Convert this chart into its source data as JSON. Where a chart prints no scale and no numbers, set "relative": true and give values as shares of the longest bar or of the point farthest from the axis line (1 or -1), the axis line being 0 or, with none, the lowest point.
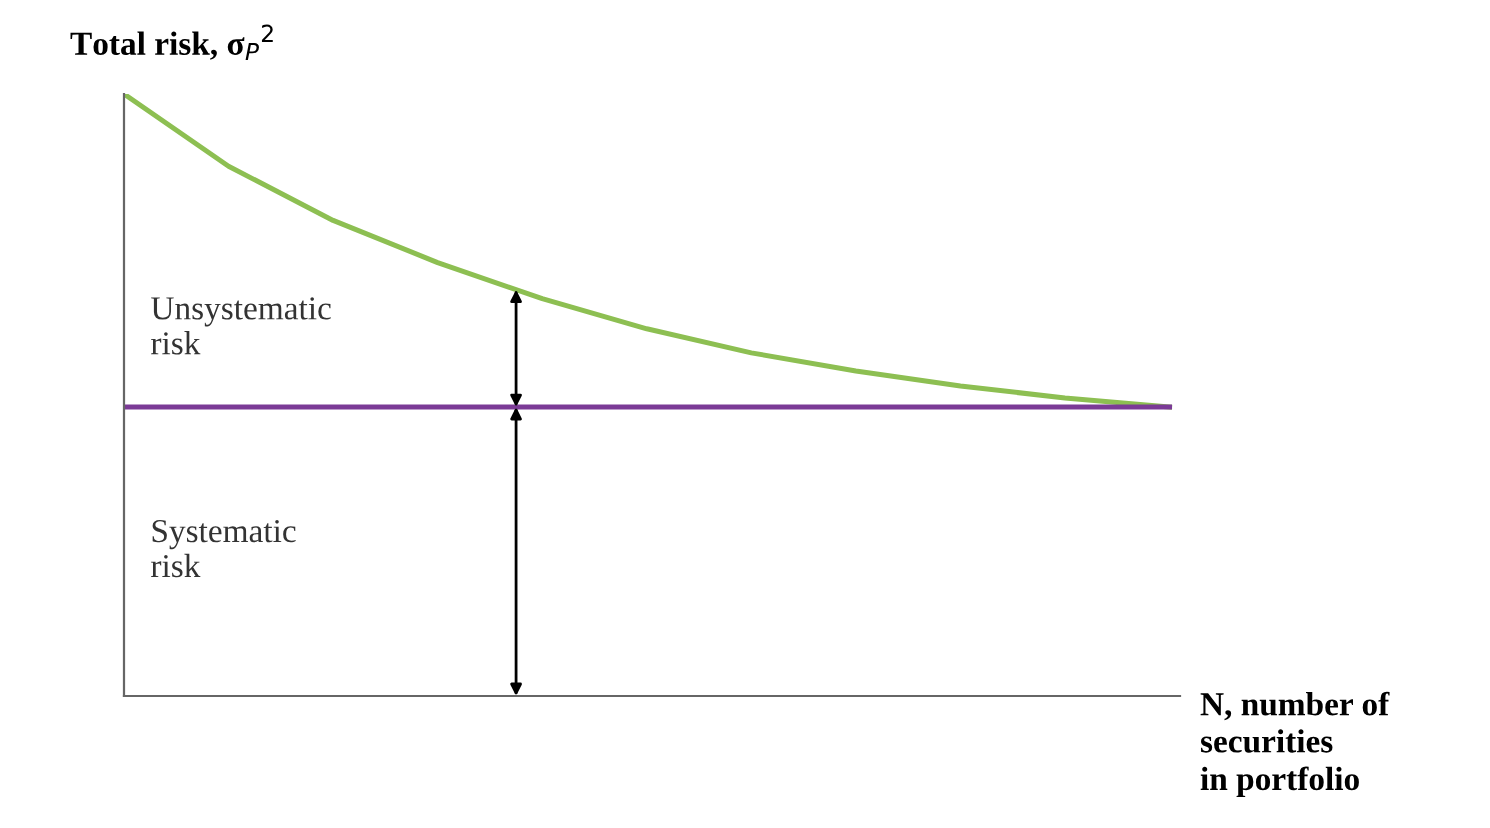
{
  "chart_data": {
    "type": "line",
    "relative": true,
    "ylabel": "Total risk, σ$_{P}$$^{2}$",
    "xlabel": "N, number of\nsecurities\nin portfolio",
    "categories": [
      null,
      null,
      null,
      null,
      null,
      null,
      null,
      null,
      null,
      null,
      null
    ],
    "series": [
      {
        "color": "#8dbf52",
        "values": [
          1.0,
          0.88,
          0.79,
          0.72,
          0.66,
          0.61,
          0.57,
          0.54,
          0.515,
          0.495,
          0.48
        ]
      },
      {
        "color": "#7b3a96",
        "values": [
          0.48,
          0.48,
          0.48,
          0.48,
          0.48,
          0.48,
          0.48,
          0.48,
          0.48,
          0.48,
          0.48
        ]
      }
    ],
    "annotations": [
      "Unsystematic\nrisk",
      "Systematic\nrisk"
    ],
    "grid": false,
    "legend": false,
    "marker": "none",
    "line_style": "solid"
  }
}
